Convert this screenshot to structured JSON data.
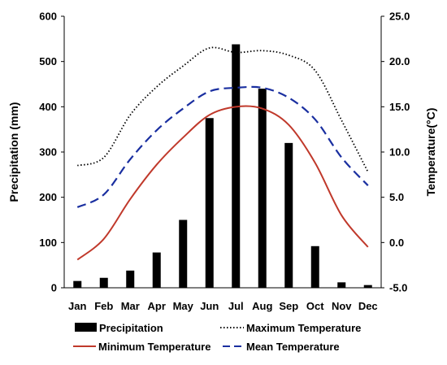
{
  "chart_data": {
    "type": "bar",
    "categories": [
      "Jan",
      "Feb",
      "Mar",
      "Apr",
      "May",
      "Jun",
      "Jul",
      "Aug",
      "Sep",
      "Oct",
      "Nov",
      "Dec"
    ],
    "series": [
      {
        "name": "Precipitation",
        "type": "bar",
        "axis": "left",
        "color": "#000000",
        "values": [
          15,
          22,
          38,
          78,
          150,
          375,
          538,
          440,
          320,
          92,
          12,
          6
        ]
      },
      {
        "name": "Maximum Temperature",
        "type": "line",
        "axis": "right",
        "color": "#000000",
        "line_style": "dotted",
        "values": [
          8.5,
          9.4,
          14.1,
          17.2,
          19.5,
          21.5,
          21.0,
          21.2,
          20.7,
          19.0,
          13.5,
          7.8
        ]
      },
      {
        "name": "Minimum Temperature",
        "type": "line",
        "axis": "right",
        "color": "#c0392b",
        "line_style": "solid",
        "values": [
          -1.9,
          0.4,
          4.8,
          8.6,
          11.6,
          14.1,
          15.0,
          14.8,
          13.0,
          8.8,
          3.0,
          -0.5
        ]
      },
      {
        "name": "Mean Temperature",
        "type": "line",
        "axis": "right",
        "color": "#1a2fa0",
        "line_style": "dashed",
        "values": [
          3.9,
          5.3,
          9.2,
          12.4,
          14.8,
          16.7,
          17.1,
          17.1,
          16.0,
          13.6,
          9.4,
          6.3
        ]
      }
    ],
    "ylabel": "Precipitation (mm)",
    "y2label": "Temperature(°C)",
    "ylim": [
      0,
      600
    ],
    "y2lim": [
      -5,
      25
    ],
    "yticks": [
      "0",
      "100",
      "200",
      "300",
      "400",
      "500",
      "600"
    ],
    "y2ticks": [
      "-5.0",
      "0.0",
      "5.0",
      "10.0",
      "15.0",
      "20.0",
      "25.0"
    ],
    "grid": false,
    "legend_position": "bottom"
  }
}
